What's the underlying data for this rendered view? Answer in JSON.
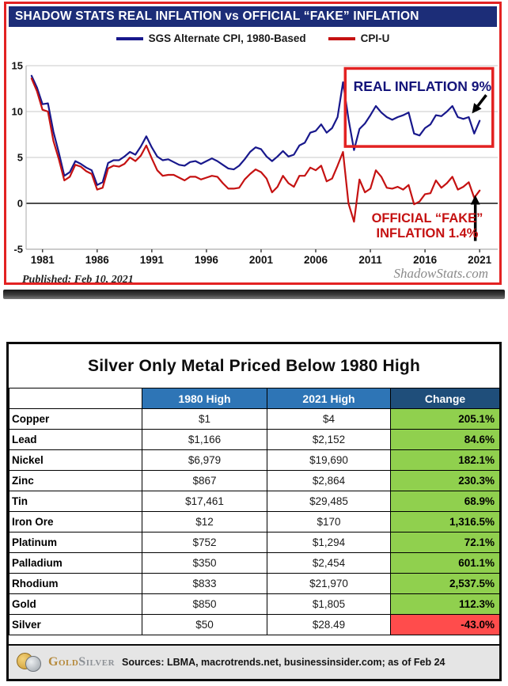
{
  "colors": {
    "chart_frame_red": "#e32222",
    "title_navy": "#1c2d78",
    "sgs_blue": "#18188c",
    "cpi_red": "#c51212",
    "annotation_navy": "#14147a",
    "header_blue": "#2e75b6",
    "header_navy": "#1f4e7a",
    "up_green": "#90d04e",
    "down_red": "#ff4c4c"
  },
  "chart_data": [
    {
      "type": "line",
      "title": "SHADOW STATS REAL INFLATION vs OFFICIAL “FAKE” INFLATION",
      "xlabel": "",
      "ylabel": "",
      "xlim": [
        1979.5,
        2022
      ],
      "ylim": [
        -5,
        15
      ],
      "xticks": [
        1981,
        1986,
        1991,
        1996,
        2001,
        2006,
        2011,
        2016,
        2021
      ],
      "yticks": [
        -5,
        0,
        5,
        10,
        15
      ],
      "grid": true,
      "legend_position": "top",
      "x": [
        1980,
        1980.5,
        1981,
        1981.5,
        1982,
        1982.5,
        1983,
        1983.5,
        1984,
        1984.5,
        1985,
        1985.5,
        1986,
        1986.5,
        1987,
        1987.5,
        1988,
        1988.5,
        1989,
        1989.5,
        1990,
        1990.5,
        1991,
        1991.5,
        1992,
        1992.5,
        1993,
        1993.5,
        1994,
        1994.5,
        1995,
        1995.5,
        1996,
        1996.5,
        1997,
        1997.5,
        1998,
        1998.5,
        1999,
        1999.5,
        2000,
        2000.5,
        2001,
        2001.5,
        2002,
        2002.5,
        2003,
        2003.5,
        2004,
        2004.5,
        2005,
        2005.5,
        2006,
        2006.5,
        2007,
        2007.5,
        2008,
        2008.5,
        2009,
        2009.5,
        2010,
        2010.5,
        2011,
        2011.5,
        2012,
        2012.5,
        2013,
        2013.5,
        2014,
        2014.5,
        2015,
        2015.5,
        2016,
        2016.5,
        2017,
        2017.5,
        2018,
        2018.5,
        2019,
        2019.5,
        2020,
        2020.5,
        2021
      ],
      "series": [
        {
          "name": "SGS Alternate CPI, 1980-Based",
          "color": "#18188c",
          "values": [
            13.9,
            12.6,
            10.8,
            10.9,
            7.8,
            5.5,
            3.0,
            3.4,
            4.6,
            4.3,
            3.9,
            3.6,
            2.0,
            2.3,
            4.4,
            4.7,
            4.7,
            5.1,
            5.6,
            5.3,
            6.2,
            7.3,
            6.1,
            5.1,
            4.7,
            4.8,
            4.5,
            4.2,
            4.1,
            4.5,
            4.6,
            4.3,
            4.6,
            4.9,
            4.6,
            4.2,
            3.8,
            3.7,
            4.1,
            4.8,
            5.6,
            6.1,
            5.9,
            5.1,
            4.6,
            5.1,
            5.7,
            5.1,
            5.3,
            6.3,
            6.6,
            7.7,
            7.9,
            8.6,
            7.7,
            8.2,
            9.4,
            13.2,
            9.2,
            5.8,
            8.1,
            8.7,
            9.6,
            10.6,
            9.9,
            9.4,
            9.1,
            9.4,
            9.6,
            9.9,
            7.6,
            7.4,
            8.2,
            8.6,
            9.6,
            9.5,
            10.0,
            10.6,
            9.4,
            9.2,
            9.4,
            7.6,
            9.0
          ]
        },
        {
          "name": "CPI-U",
          "color": "#c51212",
          "values": [
            13.6,
            12.2,
            10.2,
            10.0,
            6.8,
            4.8,
            2.5,
            2.9,
            4.2,
            4.0,
            3.5,
            3.2,
            1.5,
            1.7,
            3.8,
            4.1,
            4.0,
            4.3,
            5.0,
            4.6,
            5.2,
            6.3,
            4.9,
            3.6,
            3.0,
            3.1,
            3.1,
            2.8,
            2.5,
            2.9,
            2.9,
            2.6,
            2.8,
            3.0,
            2.9,
            2.2,
            1.6,
            1.6,
            1.7,
            2.6,
            3.2,
            3.7,
            3.4,
            2.7,
            1.2,
            1.8,
            3.0,
            2.2,
            1.8,
            3.0,
            3.0,
            3.9,
            3.6,
            4.1,
            2.4,
            2.7,
            4.1,
            5.6,
            0.0,
            -2.0,
            2.6,
            1.2,
            1.6,
            3.6,
            2.9,
            1.7,
            1.6,
            1.8,
            1.5,
            2.0,
            -0.1,
            0.2,
            1.0,
            1.1,
            2.5,
            1.7,
            2.2,
            2.9,
            1.5,
            1.8,
            2.3,
            0.6,
            1.4
          ]
        }
      ],
      "highlight_box": {
        "x1": 2008.7,
        "y1": 6.2,
        "x2": 2022.2,
        "y2": 14.7
      },
      "arrows": [
        {
          "from": [
            2021.6,
            11.8
          ],
          "to": [
            2020.3,
            9.8
          ]
        },
        {
          "from": [
            2020.6,
            -4.1
          ],
          "to": [
            2020.6,
            0.9
          ]
        }
      ],
      "annotations": {
        "real": "REAL INFLATION 9%",
        "fake_line1": "OFFICIAL “FAKE”",
        "fake_line2": "INFLATION 1.4%"
      },
      "published_note": "Published: Feb 10, 2021",
      "watermark": "ShadowStats.com"
    },
    {
      "type": "table",
      "title": "Silver Only Metal Priced Below 1980 High",
      "columns": [
        "",
        "1980 High",
        "2021 High",
        "Change"
      ],
      "rows": [
        {
          "metal": "Copper",
          "high1980": "$1",
          "high2021": "$4",
          "change": "205.1%",
          "direction": "up"
        },
        {
          "metal": "Lead",
          "high1980": "$1,166",
          "high2021": "$2,152",
          "change": "84.6%",
          "direction": "up"
        },
        {
          "metal": "Nickel",
          "high1980": "$6,979",
          "high2021": "$19,690",
          "change": "182.1%",
          "direction": "up"
        },
        {
          "metal": "Zinc",
          "high1980": "$867",
          "high2021": "$2,864",
          "change": "230.3%",
          "direction": "up"
        },
        {
          "metal": "Tin",
          "high1980": "$17,461",
          "high2021": "$29,485",
          "change": "68.9%",
          "direction": "up"
        },
        {
          "metal": "Iron Ore",
          "high1980": "$12",
          "high2021": "$170",
          "change": "1,316.5%",
          "direction": "up"
        },
        {
          "metal": "Platinum",
          "high1980": "$752",
          "high2021": "$1,294",
          "change": "72.1%",
          "direction": "up"
        },
        {
          "metal": "Palladium",
          "high1980": "$350",
          "high2021": "$2,454",
          "change": "601.1%",
          "direction": "up"
        },
        {
          "metal": "Rhodium",
          "high1980": "$833",
          "high2021": "$21,970",
          "change": "2,537.5%",
          "direction": "up"
        },
        {
          "metal": "Gold",
          "high1980": "$850",
          "high2021": "$1,805",
          "change": "112.3%",
          "direction": "up"
        },
        {
          "metal": "Silver",
          "high1980": "$50",
          "high2021": "$28.49",
          "change": "-43.0%",
          "direction": "down"
        }
      ],
      "footer": {
        "brand_gold": "Gold",
        "brand_silver": "Silver",
        "sources": "Sources: LBMA, macrotrends.net, businessinsider.com; as of Feb 24"
      }
    }
  ]
}
